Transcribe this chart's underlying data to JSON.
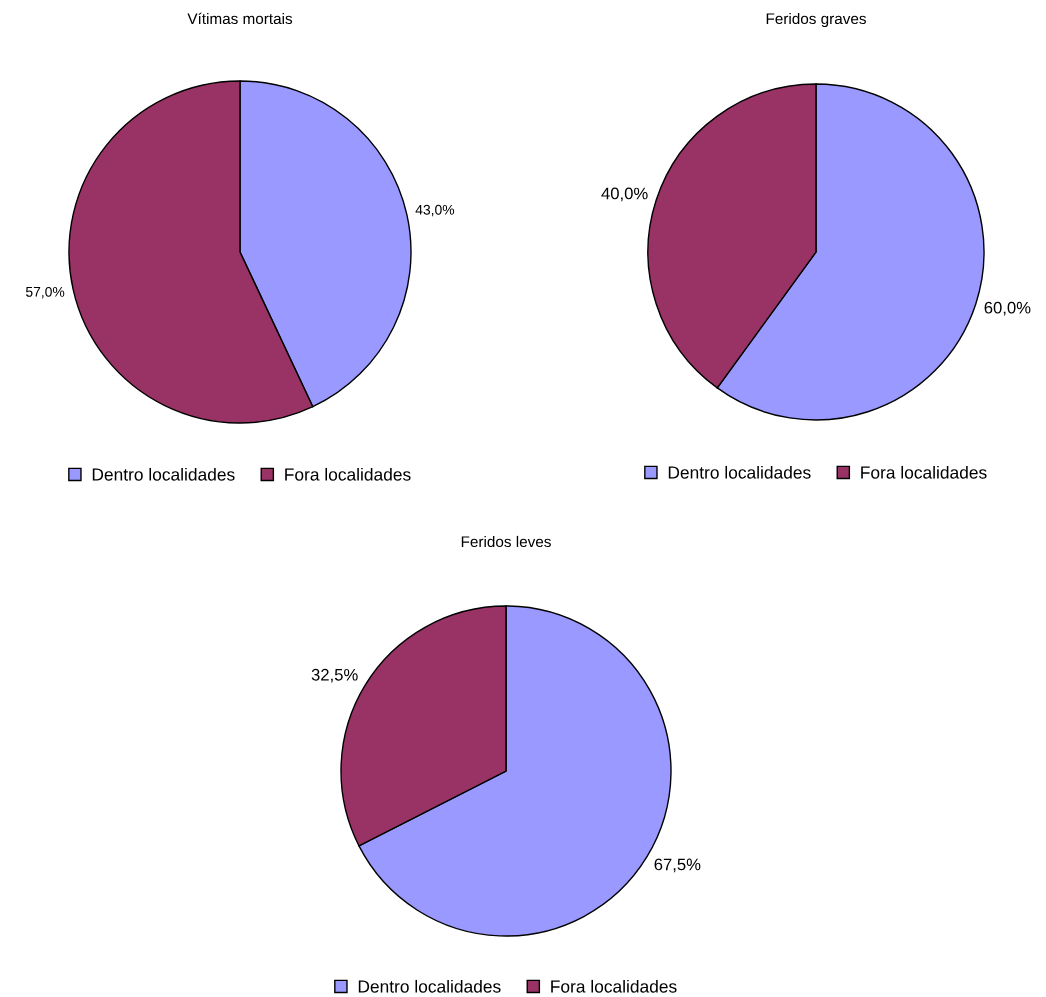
{
  "chart_data": [
    {
      "type": "pie",
      "title": "Vítimas mortais",
      "categories": [
        "Dentro localidades",
        "Fora localidades"
      ],
      "values": [
        43.0,
        57.0
      ],
      "colors": [
        "#9999ff",
        "#993366"
      ],
      "value_labels": [
        "43,0%",
        "57,0%"
      ],
      "legend": "bottom"
    },
    {
      "type": "pie",
      "title": "Feridos graves",
      "categories": [
        "Dentro localidades",
        "Fora localidades"
      ],
      "values": [
        60.0,
        40.0
      ],
      "colors": [
        "#9999ff",
        "#993366"
      ],
      "value_labels": [
        "60,0%",
        "40,0%"
      ],
      "legend": "bottom"
    },
    {
      "type": "pie",
      "title": "Feridos leves",
      "categories": [
        "Dentro localidades",
        "Fora localidades"
      ],
      "values": [
        67.5,
        32.5
      ],
      "colors": [
        "#9999ff",
        "#993366"
      ],
      "value_labels": [
        "67,5%",
        "32,5%"
      ],
      "legend": "bottom"
    }
  ]
}
